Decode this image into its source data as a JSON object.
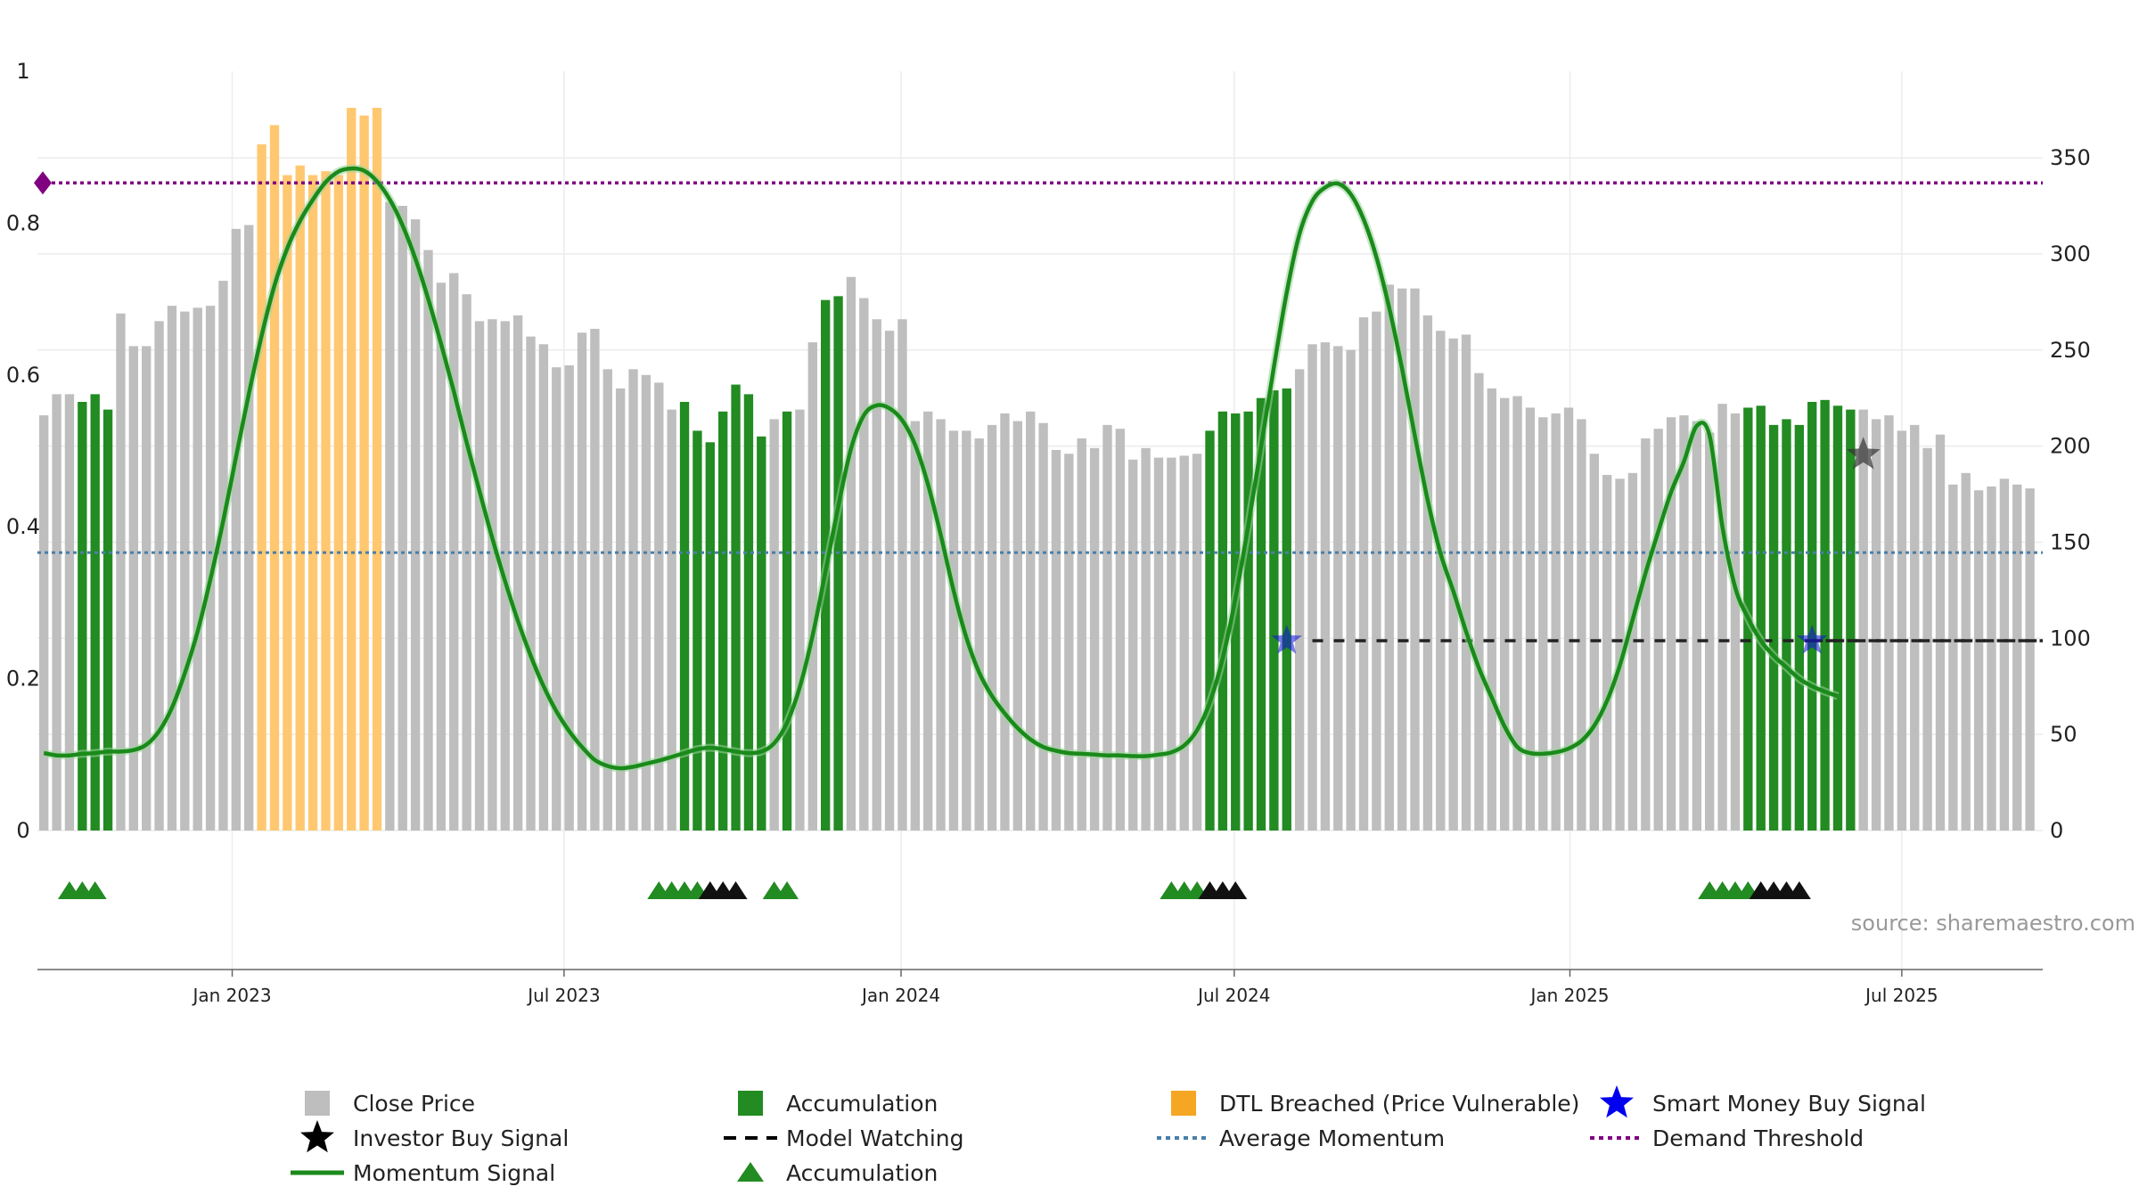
{
  "chart_data": {
    "type": "bar",
    "title": "",
    "source_label": "source: sharemaestro.com",
    "left_axis": {
      "ylim": [
        0,
        1
      ],
      "ticks": [
        0,
        0.2,
        0.4,
        0.6,
        0.8,
        1
      ],
      "tick_labels": [
        "0",
        "0.2",
        "0.4",
        "0.6",
        "0.8",
        "1"
      ]
    },
    "right_axis": {
      "ylim": [
        0,
        395
      ],
      "ticks": [
        0,
        50,
        100,
        150,
        200,
        250,
        300,
        350
      ],
      "tick_labels": [
        "0",
        "50",
        "100",
        "150",
        "200",
        "250",
        "300",
        "350"
      ]
    },
    "x_axis": {
      "tick_labels": [
        "Jan 2023",
        "Jul 2023",
        "Jan 2024",
        "Jul 2024",
        "Jan 2025",
        "Jul 2025"
      ],
      "tick_week_index": [
        14.7,
        40.6,
        66.9,
        92.9,
        119.1,
        145.0
      ],
      "n_weeks": 157
    },
    "grid": true,
    "legend_position": "bottom",
    "colors": {
      "close_price": "#bebebe",
      "accumulation": "#228b22",
      "dtl_breached": "#ffc870",
      "momentum": "#1a8a1a",
      "avg_momentum": "#4a7fa8",
      "demand_threshold": "#800080",
      "model_watching": "#222222",
      "smart_money": "#1010dd",
      "investor_buy": "#333333",
      "triangle_accum": "#228b22",
      "triangle_watch": "#111111"
    },
    "close_prices": [
      216,
      227,
      227,
      223,
      227,
      219,
      269,
      252,
      252,
      265,
      273,
      270,
      272,
      273,
      286,
      313,
      315,
      357,
      367,
      341,
      346,
      341,
      343,
      341,
      376,
      372,
      376,
      327,
      325,
      318,
      302,
      285,
      290,
      279,
      265,
      266,
      265,
      268,
      257,
      253,
      241,
      242,
      259,
      261,
      240,
      230,
      240,
      237,
      233,
      219,
      223,
      208,
      202,
      218,
      232,
      227,
      205,
      214,
      218,
      219,
      254,
      276,
      278,
      288,
      277,
      266,
      260,
      266,
      213,
      218,
      214,
      208,
      208,
      204,
      211,
      217,
      213,
      218,
      212,
      198,
      196,
      204,
      199,
      211,
      209,
      193,
      199,
      194,
      194,
      195,
      196,
      208,
      218,
      217,
      218,
      225,
      229,
      230,
      240,
      253,
      254,
      252,
      250,
      267,
      270,
      284,
      282,
      282,
      268,
      260,
      256,
      258,
      238,
      230,
      225,
      226,
      220,
      215,
      217,
      220,
      214,
      196,
      185,
      183,
      186,
      204,
      209,
      215,
      216,
      213,
      207,
      222,
      217,
      220,
      221,
      211,
      214,
      211,
      223,
      224,
      221,
      219,
      219,
      214,
      216,
      208,
      211,
      199,
      206,
      180,
      186,
      177,
      179,
      183,
      180,
      178
    ],
    "accumulation_weeks": [
      3,
      4,
      5,
      50,
      51,
      52,
      53,
      54,
      55,
      56,
      58,
      61,
      62,
      91,
      92,
      93,
      94,
      95,
      96,
      97,
      133,
      134,
      135,
      136,
      137,
      138,
      139,
      140,
      141
    ],
    "dtl_weeks": [
      17,
      18,
      19,
      20,
      21,
      22,
      23,
      24,
      25,
      26
    ],
    "momentum_signal": [
      0.102,
      0.099,
      0.099,
      0.101,
      0.102,
      0.104,
      0.104,
      0.106,
      0.113,
      0.131,
      0.162,
      0.207,
      0.262,
      0.331,
      0.408,
      0.492,
      0.575,
      0.652,
      0.718,
      0.767,
      0.803,
      0.831,
      0.854,
      0.868,
      0.872,
      0.869,
      0.855,
      0.831,
      0.797,
      0.753,
      0.7,
      0.641,
      0.578,
      0.511,
      0.447,
      0.385,
      0.328,
      0.276,
      0.23,
      0.19,
      0.157,
      0.131,
      0.11,
      0.093,
      0.085,
      0.082,
      0.084,
      0.088,
      0.092,
      0.097,
      0.102,
      0.107,
      0.109,
      0.107,
      0.104,
      0.102,
      0.104,
      0.115,
      0.142,
      0.189,
      0.257,
      0.341,
      0.427,
      0.503,
      0.547,
      0.56,
      0.556,
      0.54,
      0.508,
      0.456,
      0.389,
      0.316,
      0.254,
      0.208,
      0.177,
      0.154,
      0.135,
      0.12,
      0.11,
      0.105,
      0.102,
      0.101,
      0.1,
      0.099,
      0.099,
      0.098,
      0.098,
      0.1,
      0.103,
      0.112,
      0.132,
      0.169,
      0.227,
      0.306,
      0.402,
      0.506,
      0.611,
      0.709,
      0.786,
      0.829,
      0.847,
      0.852,
      0.838,
      0.805,
      0.755,
      0.688,
      0.608,
      0.52,
      0.435,
      0.365,
      0.315,
      0.262,
      0.214,
      0.175,
      0.137,
      0.11,
      0.102,
      0.101,
      0.103,
      0.108,
      0.118,
      0.138,
      0.171,
      0.218,
      0.278,
      0.339,
      0.394,
      0.446,
      0.486,
      0.533,
      0.52,
      0.4,
      0.32,
      0.28,
      0.25,
      0.23,
      0.215,
      0.2,
      0.19,
      0.183,
      0.177
    ],
    "avg_momentum": 0.366,
    "demand_threshold": 0.853,
    "model_watching_level": 0.25,
    "model_watching_segments": [
      [
        99,
        157
      ],
      [
        138,
        157
      ]
    ],
    "smart_money_signals": [
      {
        "week": 97,
        "value": 0.25
      },
      {
        "week": 138,
        "value": 0.25
      }
    ],
    "investor_buy_signals": [
      {
        "week": 142,
        "value": 0.495
      }
    ],
    "triangle_markers": {
      "accumulation": [
        2,
        3,
        4,
        48,
        49,
        50,
        51,
        57,
        58,
        88,
        89,
        90,
        130,
        131,
        132,
        133
      ],
      "watching": [
        52,
        53,
        54,
        91,
        92,
        93,
        134,
        135,
        136,
        137
      ]
    },
    "legend": [
      {
        "label": "Close Price",
        "key": "close-price"
      },
      {
        "label": "Investor Buy Signal",
        "key": "investor-buy"
      },
      {
        "label": "Momentum Signal",
        "key": "momentum"
      },
      {
        "label": "Accumulation",
        "key": "accumulation-bar"
      },
      {
        "label": "Model Watching",
        "key": "model-watching"
      },
      {
        "label": "Accumulation",
        "key": "accumulation-triangle"
      },
      {
        "label": "DTL Breached (Price Vulnerable)",
        "key": "dtl"
      },
      {
        "label": "Average Momentum",
        "key": "avg-momentum"
      },
      {
        "label": "Smart Money Buy Signal",
        "key": "smart-money"
      },
      {
        "label": "Demand Threshold",
        "key": "demand-threshold"
      }
    ]
  }
}
